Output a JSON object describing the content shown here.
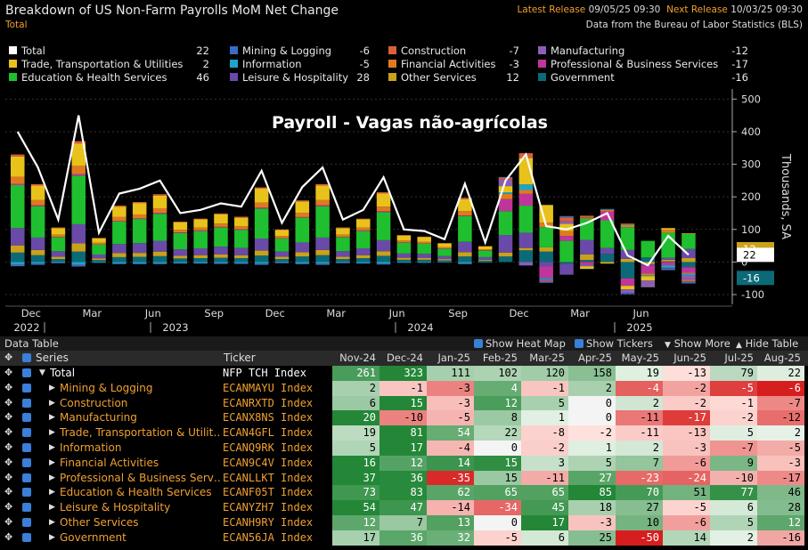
{
  "header": {
    "title": "Breakdown of US Non-Farm Payrolls MoM Net Change",
    "subtitle": "Total",
    "latest_label": "Latest Release",
    "latest_value": "09/05/25 09:30",
    "next_label": "Next Release",
    "next_value": "10/03/25 09:30",
    "source": "Data from the Bureau of Labor Statistics (BLS)"
  },
  "legend": [
    {
      "label": "Total",
      "value": "22",
      "color": "#ffffff"
    },
    {
      "label": "Mining & Logging",
      "value": "-6",
      "color": "#3a6cc4"
    },
    {
      "label": "Construction",
      "value": "-7",
      "color": "#d9603a"
    },
    {
      "label": "Manufacturing",
      "value": "-12",
      "color": "#8a5fb5"
    },
    {
      "label": "Trade, Transportation & Utilities",
      "value": "2",
      "color": "#e8c21a"
    },
    {
      "label": "Information",
      "value": "-5",
      "color": "#1aa6c9"
    },
    {
      "label": "Financial Activities",
      "value": "-3",
      "color": "#e07a20"
    },
    {
      "label": "Professional & Business Services",
      "value": "-17",
      "color": "#c0359c"
    },
    {
      "label": "Education & Health Services",
      "value": "46",
      "color": "#1fbf2f"
    },
    {
      "label": "Leisure & Hospitality",
      "value": "28",
      "color": "#6a4aa8"
    },
    {
      "label": "Other Services",
      "value": "12",
      "color": "#c9a21a"
    },
    {
      "label": "Government",
      "value": "-16",
      "color": "#0c6a78"
    }
  ],
  "chart_data": {
    "type": "bar",
    "title": "Payroll - Vagas não-agrícolas",
    "ylabel": "Thousands, SA",
    "ylim": [
      -130,
      520
    ],
    "yticks": [
      -100,
      0,
      100,
      200,
      300,
      400,
      500
    ],
    "x_month_labels": [
      "Dec",
      "Mar",
      "Jun",
      "Sep",
      "Dec",
      "Mar",
      "Jun",
      "Sep",
      "Dec",
      "Mar",
      "Jun"
    ],
    "x_year_labels": [
      "2022",
      "2023",
      "2024",
      "2025"
    ],
    "stack_order": [
      "Government",
      "Other Services",
      "Leisure & Hospitality",
      "Education & Health Services",
      "Professional & Business Services",
      "Financial Activities",
      "Information",
      "Trade, Transportation & Utilities",
      "Manufacturing",
      "Construction",
      "Mining & Logging"
    ],
    "total_line": [
      400,
      290,
      130,
      450,
      90,
      210,
      225,
      250,
      150,
      160,
      180,
      170,
      280,
      120,
      230,
      290,
      130,
      160,
      260,
      100,
      95,
      70,
      240,
      60,
      250,
      330,
      110,
      100,
      120,
      150,
      20,
      -10,
      80,
      22
    ],
    "end_labels": [
      {
        "label": "12",
        "value": 12,
        "color": "#c9a21a"
      },
      {
        "label": "22",
        "value": 22,
        "color": "#ffffff"
      },
      {
        "label": "-16",
        "value": -16,
        "color": "#0c6a78"
      }
    ]
  },
  "table": {
    "title": "Data Table",
    "toggles": [
      "Show Heat Map",
      "Show Tickers",
      "Show More",
      "Hide Table"
    ],
    "col_series": "Series",
    "col_ticker": "Ticker",
    "months": [
      "Nov-24",
      "Dec-24",
      "Jan-25",
      "Feb-25",
      "Mar-25",
      "Apr-25",
      "May-25",
      "Jun-25",
      "Jul-25",
      "Aug-25"
    ],
    "rows": [
      {
        "name": "Total",
        "ticker": "NFP TCH Index",
        "values": [
          261,
          323,
          111,
          102,
          120,
          158,
          19,
          -13,
          79,
          22
        ],
        "total": true
      },
      {
        "name": "Mining & Logging",
        "ticker": "ECANMAYU Index",
        "values": [
          2,
          -1,
          -3,
          4,
          -1,
          2,
          -4,
          -2,
          -5,
          -6
        ]
      },
      {
        "name": "Construction",
        "ticker": "ECANRXTD Index",
        "values": [
          6,
          15,
          -3,
          12,
          5,
          0,
          2,
          -2,
          -1,
          -7
        ]
      },
      {
        "name": "Manufacturing",
        "ticker": "ECANX8NS Index",
        "values": [
          20,
          -10,
          -5,
          8,
          1,
          0,
          -11,
          -17,
          -2,
          -12
        ]
      },
      {
        "name": "Trade, Transportation & Utilit…",
        "ticker": "ECAN4GFL Index",
        "values": [
          19,
          81,
          54,
          22,
          -8,
          -2,
          -11,
          -13,
          5,
          2
        ]
      },
      {
        "name": "Information",
        "ticker": "ECANQ9RK Index",
        "values": [
          5,
          17,
          -4,
          0,
          -2,
          1,
          2,
          -3,
          -7,
          -5
        ]
      },
      {
        "name": "Financial Activities",
        "ticker": "ECAN9C4V Index",
        "values": [
          16,
          12,
          14,
          15,
          3,
          5,
          7,
          -6,
          9,
          -3
        ]
      },
      {
        "name": "Professional & Business Serv…",
        "ticker": "ECANLLKT Index",
        "values": [
          37,
          36,
          -35,
          15,
          -11,
          27,
          -23,
          -24,
          -10,
          -17
        ]
      },
      {
        "name": "Education & Health Services",
        "ticker": "ECANF05T Index",
        "values": [
          73,
          83,
          62,
          65,
          65,
          85,
          70,
          51,
          77,
          46
        ]
      },
      {
        "name": "Leisure & Hospitality",
        "ticker": "ECANYZH7 Index",
        "values": [
          54,
          47,
          -14,
          -34,
          45,
          18,
          27,
          -5,
          6,
          28
        ]
      },
      {
        "name": "Other Services",
        "ticker": "ECANH9RY Index",
        "values": [
          12,
          7,
          13,
          0,
          17,
          -3,
          10,
          -6,
          5,
          12
        ]
      },
      {
        "name": "Government",
        "ticker": "ECAN56JA Index",
        "values": [
          17,
          36,
          32,
          -5,
          6,
          25,
          -50,
          14,
          2,
          -16
        ]
      }
    ]
  }
}
